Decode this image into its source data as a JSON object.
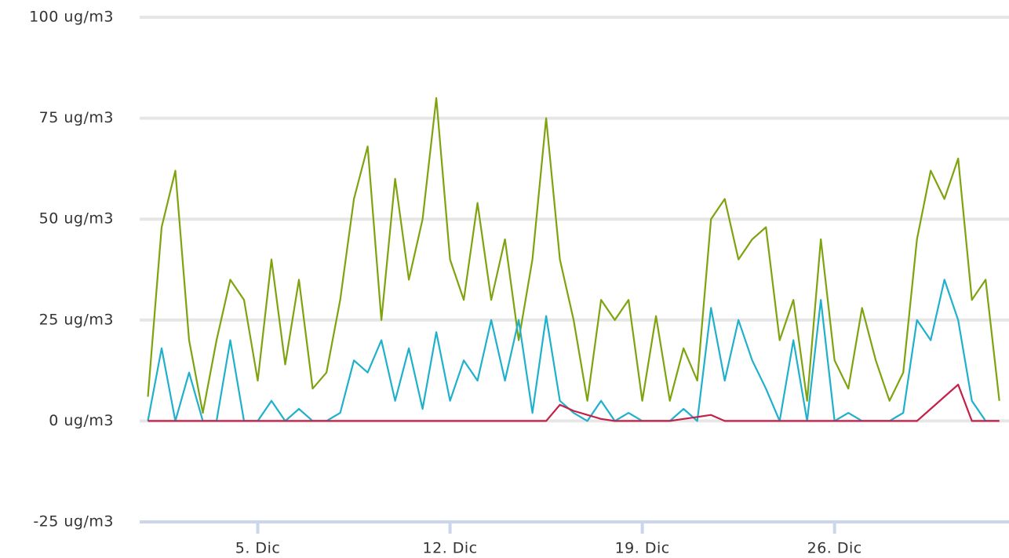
{
  "chart_data": {
    "type": "line",
    "x": [
      1,
      1.5,
      2,
      2.5,
      3,
      3.5,
      4,
      4.5,
      5,
      5.5,
      6,
      6.5,
      7,
      7.5,
      8,
      8.5,
      9,
      9.5,
      10,
      10.5,
      11,
      11.5,
      12,
      12.5,
      13,
      13.5,
      14,
      14.5,
      15,
      15.5,
      16,
      16.5,
      17,
      17.5,
      18,
      18.5,
      19,
      19.5,
      20,
      20.5,
      21,
      21.5,
      22,
      22.5,
      23,
      23.5,
      24,
      24.5,
      25,
      25.5,
      26,
      26.5,
      27,
      27.5,
      28,
      28.5,
      29,
      29.5,
      30,
      30.5,
      31,
      31.5,
      32
    ],
    "series": [
      {
        "color": "#7ea30f",
        "values": [
          6,
          48,
          62,
          20,
          2,
          20,
          35,
          30,
          10,
          40,
          14,
          35,
          8,
          12,
          30,
          55,
          68,
          25,
          60,
          35,
          50,
          80,
          40,
          30,
          54,
          30,
          45,
          20,
          40,
          75,
          40,
          25,
          5,
          30,
          25,
          30,
          5,
          26,
          5,
          18,
          10,
          50,
          55,
          40,
          45,
          48,
          20,
          30,
          5,
          45,
          15,
          8,
          28,
          15,
          5,
          12,
          45,
          62,
          55,
          65,
          30,
          35,
          5
        ]
      },
      {
        "color": "#1fb0cc",
        "values": [
          0,
          18,
          0,
          12,
          0,
          0,
          20,
          0,
          0,
          5,
          0,
          3,
          0,
          0,
          2,
          15,
          12,
          20,
          5,
          18,
          3,
          22,
          5,
          15,
          10,
          25,
          10,
          25,
          2,
          26,
          5,
          2,
          0,
          5,
          0,
          2,
          0,
          0,
          0,
          3,
          0,
          28,
          10,
          25,
          15,
          8,
          0,
          20,
          0,
          30,
          0,
          2,
          0,
          0,
          0,
          2,
          25,
          20,
          35,
          25,
          5,
          0,
          0
        ]
      },
      {
        "color": "#c42048",
        "values": [
          0,
          0,
          0,
          0,
          0,
          0,
          0,
          0,
          0,
          0,
          0,
          0,
          0,
          0,
          0,
          0,
          0,
          0,
          0,
          0,
          0,
          0,
          0,
          0,
          0,
          0,
          0,
          0,
          0,
          0,
          4,
          2.5,
          1.5,
          0.5,
          0,
          0,
          0,
          0,
          0,
          0.5,
          1,
          1.5,
          0,
          0,
          0,
          0,
          0,
          0,
          0,
          0,
          0,
          0,
          0,
          0,
          0,
          0,
          0,
          3,
          6,
          9,
          0,
          0,
          0
        ]
      }
    ],
    "xlim": [
      0.7,
      32.35
    ],
    "xticks": [
      {
        "value": 5,
        "label": "5. Dic"
      },
      {
        "value": 12,
        "label": "12. Dic"
      },
      {
        "value": 19,
        "label": "19. Dic"
      },
      {
        "value": 26,
        "label": "26. Dic"
      }
    ],
    "ylim": [
      -25,
      100
    ],
    "yticks": [
      {
        "value": -25,
        "label": "-25 ug/m3"
      },
      {
        "value": 0,
        "label": "0 ug/m3"
      },
      {
        "value": 25,
        "label": "25 ug/m3"
      },
      {
        "value": 50,
        "label": "50 ug/m3"
      },
      {
        "value": 75,
        "label": "75 ug/m3"
      },
      {
        "value": 100,
        "label": "100 ug/m3"
      }
    ],
    "grid": true
  }
}
